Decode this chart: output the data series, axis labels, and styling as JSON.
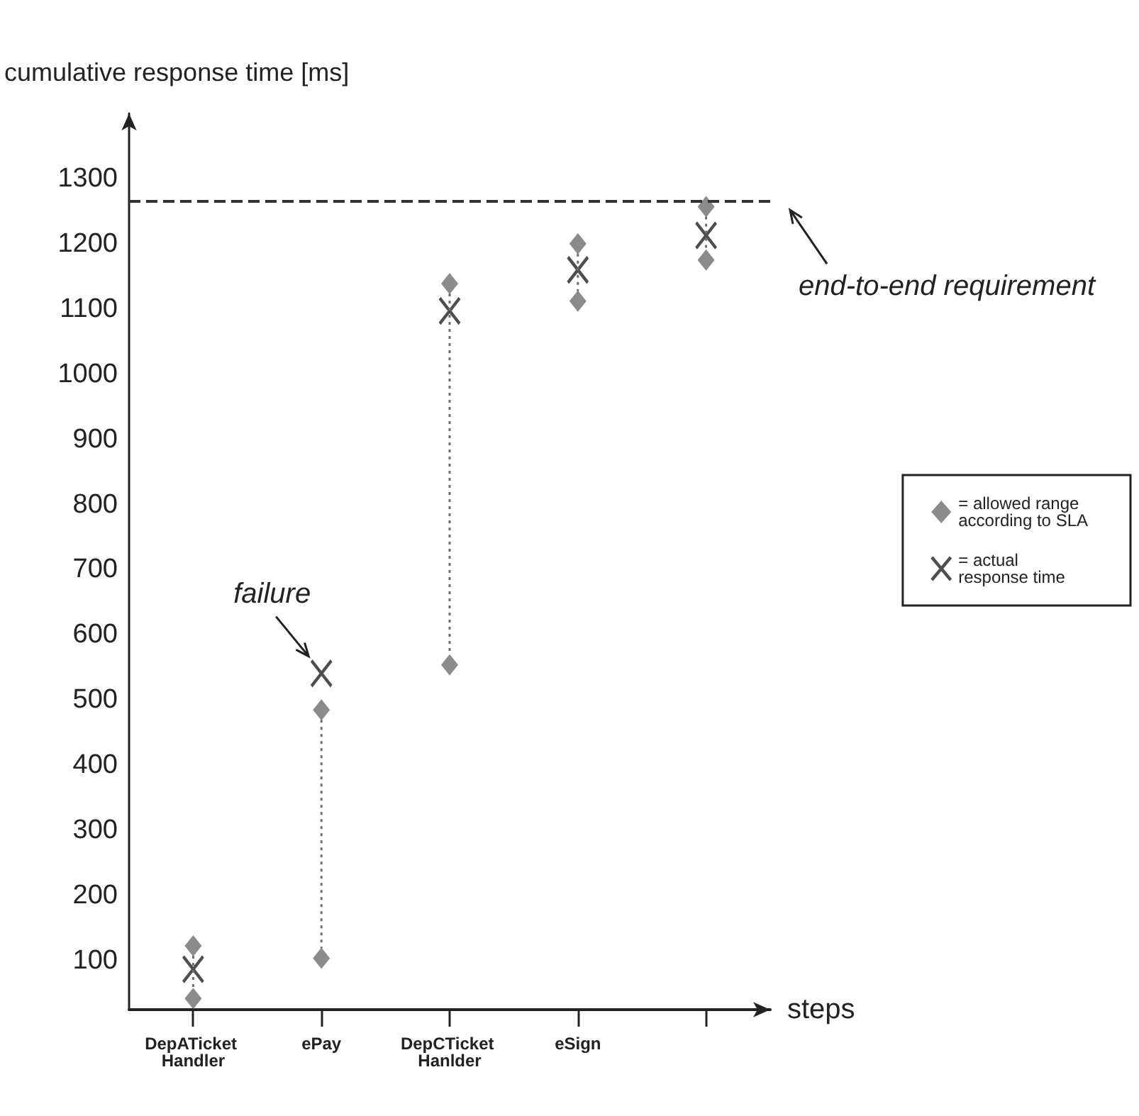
{
  "chart_data": {
    "type": "scatter",
    "xlabel": "steps",
    "ylabel": "cumulative response time [ms]",
    "categories": [
      "DepATicket Handler",
      "ePay",
      "DepCTicket Hanlder",
      "eSign",
      null
    ],
    "ylim": [
      25,
      1400
    ],
    "yticks": [
      100,
      200,
      300,
      400,
      500,
      600,
      700,
      800,
      900,
      1000,
      1100,
      1200,
      1300
    ],
    "series": [
      {
        "name": "= allowed range according to SLA",
        "color": "#6e6e6e",
        "marker": "diamond",
        "line_style": "dotted",
        "values": [
          123,
          485,
          1139,
          1200,
          1257
        ]
      },
      {
        "color": "#6e6e6e",
        "marker": "diamond",
        "values": [
          42,
          104,
          554,
          1112,
          1175
        ]
      },
      {
        "name": "= actual response time",
        "color": "#222222",
        "marker": "cross",
        "values": [
          87,
          541,
          1097,
          1160,
          1213
        ]
      }
    ],
    "ref_lines": [
      {
        "axis": "y",
        "value": 1265,
        "label": "end-to-end requirement",
        "line_style": "dashed",
        "color": "#333333"
      }
    ],
    "annotations": [
      {
        "text": "failure",
        "x": "ePay",
        "y": 541
      }
    ],
    "grid": false,
    "legend": "right"
  }
}
